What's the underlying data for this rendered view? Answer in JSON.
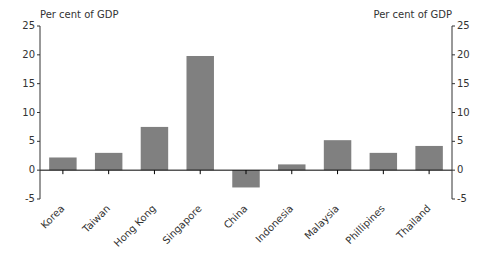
{
  "chart_data": {
    "type": "bar",
    "ylabel": "Per cent of GDP",
    "y2label": "Per cent of GDP",
    "categories": [
      "Korea",
      "Taiwan",
      "Hong Kong",
      "Singapore",
      "China",
      "Indonesia",
      "Malaysia",
      "Phillipines",
      "Thailand"
    ],
    "values": [
      2.2,
      3.0,
      7.5,
      19.8,
      -3.0,
      1.0,
      5.2,
      3.0,
      4.2
    ],
    "color": "#808080",
    "ylim": [
      -5,
      25
    ],
    "yticks": [
      -5,
      0,
      5,
      10,
      15,
      20,
      25
    ],
    "y2lim": [
      -5,
      25
    ],
    "y2ticks": [
      -5,
      0,
      5,
      10,
      15,
      20,
      25
    ],
    "grid": false
  }
}
